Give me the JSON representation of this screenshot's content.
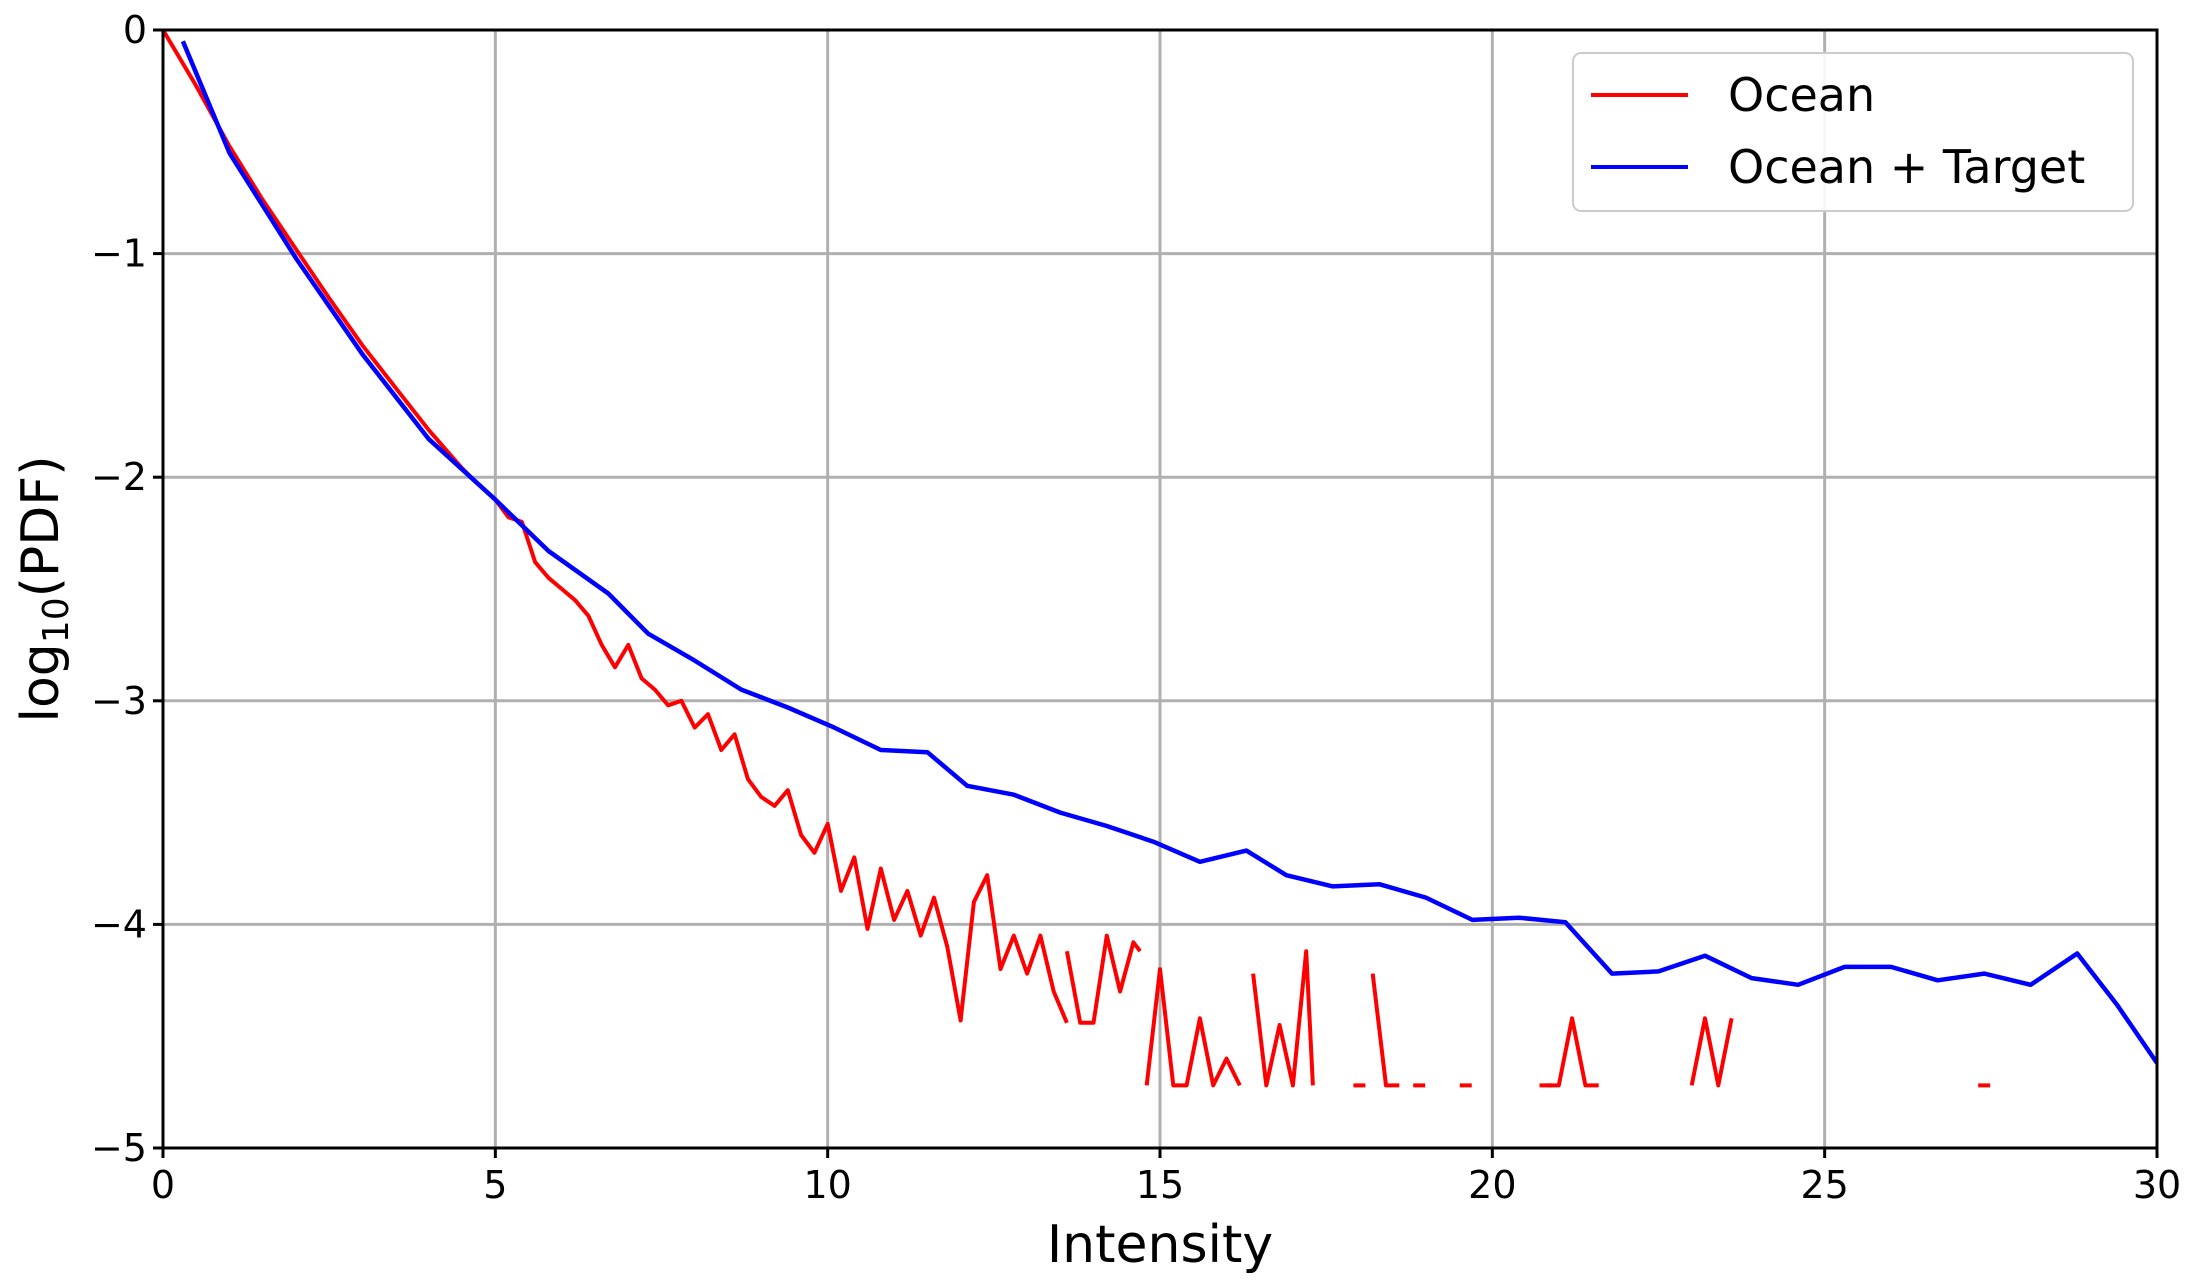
{
  "chart_data": {
    "type": "line",
    "title": "",
    "xlabel": "Intensity",
    "ylabel_parts": {
      "pre": "log",
      "sub": "10",
      "post": "(PDF)"
    },
    "xlim": [
      0,
      30
    ],
    "ylim": [
      -5,
      0
    ],
    "xticks": [
      0,
      5,
      10,
      15,
      20,
      25,
      30
    ],
    "yticks": [
      0,
      -1,
      -2,
      -3,
      -4,
      -5
    ],
    "xtick_labels": [
      "0",
      "5",
      "10",
      "15",
      "20",
      "25",
      "30"
    ],
    "ytick_labels": [
      "0",
      "−1",
      "−2",
      "−3",
      "−4",
      "−5"
    ],
    "grid": true,
    "legend_position": "top-right",
    "series": [
      {
        "name": "Ocean",
        "color": "#ff0000",
        "segments": [
          [
            [
              0,
              0
            ],
            [
              0.5,
              -0.25
            ],
            [
              1,
              -0.52
            ],
            [
              1.5,
              -0.76
            ],
            [
              2,
              -0.98
            ],
            [
              2.5,
              -1.2
            ],
            [
              3,
              -1.41
            ],
            [
              3.5,
              -1.6
            ],
            [
              4,
              -1.79
            ],
            [
              4.5,
              -1.96
            ],
            [
              4.7,
              -2.02
            ],
            [
              5,
              -2.1
            ],
            [
              5.2,
              -2.18
            ],
            [
              5.4,
              -2.2
            ],
            [
              5.6,
              -2.38
            ],
            [
              5.8,
              -2.45
            ],
            [
              6,
              -2.5
            ],
            [
              6.2,
              -2.55
            ],
            [
              6.4,
              -2.62
            ],
            [
              6.6,
              -2.75
            ],
            [
              6.8,
              -2.85
            ],
            [
              7,
              -2.75
            ],
            [
              7.2,
              -2.9
            ],
            [
              7.4,
              -2.95
            ],
            [
              7.6,
              -3.02
            ],
            [
              7.8,
              -3.0
            ],
            [
              8,
              -3.12
            ],
            [
              8.2,
              -3.06
            ],
            [
              8.4,
              -3.22
            ],
            [
              8.6,
              -3.15
            ],
            [
              8.8,
              -3.35
            ],
            [
              9,
              -3.43
            ],
            [
              9.2,
              -3.47
            ],
            [
              9.4,
              -3.4
            ],
            [
              9.6,
              -3.6
            ],
            [
              9.8,
              -3.68
            ],
            [
              10,
              -3.55
            ],
            [
              10.2,
              -3.85
            ],
            [
              10.4,
              -3.7
            ],
            [
              10.6,
              -4.02
            ],
            [
              10.8,
              -3.75
            ],
            [
              11,
              -3.98
            ],
            [
              11.2,
              -3.85
            ],
            [
              11.4,
              -4.05
            ],
            [
              11.6,
              -3.88
            ],
            [
              11.8,
              -4.1
            ],
            [
              12,
              -4.43
            ],
            [
              12.2,
              -3.9
            ],
            [
              12.4,
              -3.78
            ],
            [
              12.6,
              -4.2
            ],
            [
              12.8,
              -4.05
            ],
            [
              13,
              -4.22
            ],
            [
              13.2,
              -4.05
            ],
            [
              13.4,
              -4.3
            ],
            [
              13.6,
              -4.44
            ]
          ],
          [
            [
              13.6,
              -4.12
            ],
            [
              13.8,
              -4.44
            ],
            [
              14,
              -4.44
            ],
            [
              14.2,
              -4.05
            ],
            [
              14.4,
              -4.3
            ],
            [
              14.6,
              -4.08
            ],
            [
              14.7,
              -4.12
            ]
          ],
          [
            [
              14.8,
              -4.72
            ],
            [
              15,
              -4.2
            ],
            [
              15.2,
              -4.72
            ],
            [
              15.4,
              -4.72
            ],
            [
              15.6,
              -4.42
            ],
            [
              15.8,
              -4.72
            ],
            [
              16,
              -4.6
            ],
            [
              16.2,
              -4.72
            ]
          ],
          [
            [
              16.4,
              -4.22
            ],
            [
              16.6,
              -4.72
            ],
            [
              16.8,
              -4.45
            ],
            [
              17,
              -4.72
            ],
            [
              17.2,
              -4.12
            ],
            [
              17.3,
              -4.72
            ]
          ],
          [
            [
              18.2,
              -4.22
            ],
            [
              18.4,
              -4.72
            ],
            [
              18.6,
              -4.72
            ]
          ],
          [
            [
              20.8,
              -4.72
            ],
            [
              21,
              -4.72
            ],
            [
              21.2,
              -4.42
            ],
            [
              21.4,
              -4.72
            ],
            [
              21.6,
              -4.72
            ]
          ],
          [
            [
              23,
              -4.72
            ],
            [
              23.2,
              -4.42
            ],
            [
              23.4,
              -4.72
            ],
            [
              23.6,
              -4.42
            ]
          ]
        ],
        "dashes": [
          [
            18,
            -4.72
          ],
          [
            18.9,
            -4.72
          ],
          [
            19.6,
            -4.72
          ],
          [
            20.8,
            -4.72
          ],
          [
            27.4,
            -4.72
          ]
        ]
      },
      {
        "name": "Ocean + Target",
        "color": "#0000ff",
        "points": [
          [
            0.3,
            -0.05
          ],
          [
            1,
            -0.55
          ],
          [
            2,
            -1.02
          ],
          [
            3,
            -1.45
          ],
          [
            4,
            -1.83
          ],
          [
            5,
            -2.1
          ],
          [
            5.8,
            -2.33
          ],
          [
            6.7,
            -2.52
          ],
          [
            7.3,
            -2.7
          ],
          [
            8,
            -2.82
          ],
          [
            8.7,
            -2.95
          ],
          [
            9.4,
            -3.03
          ],
          [
            10.1,
            -3.12
          ],
          [
            10.8,
            -3.22
          ],
          [
            11.5,
            -3.23
          ],
          [
            12.1,
            -3.38
          ],
          [
            12.8,
            -3.42
          ],
          [
            13.5,
            -3.5
          ],
          [
            14.2,
            -3.56
          ],
          [
            14.9,
            -3.63
          ],
          [
            15.6,
            -3.72
          ],
          [
            16.3,
            -3.67
          ],
          [
            16.9,
            -3.78
          ],
          [
            17.6,
            -3.83
          ],
          [
            18.3,
            -3.82
          ],
          [
            19,
            -3.88
          ],
          [
            19.7,
            -3.98
          ],
          [
            20.4,
            -3.97
          ],
          [
            21.1,
            -3.99
          ],
          [
            21.8,
            -4.22
          ],
          [
            22.5,
            -4.21
          ],
          [
            23.2,
            -4.14
          ],
          [
            23.9,
            -4.24
          ],
          [
            24.6,
            -4.27
          ],
          [
            25.3,
            -4.19
          ],
          [
            26,
            -4.19
          ],
          [
            26.7,
            -4.25
          ],
          [
            27.4,
            -4.22
          ],
          [
            28.1,
            -4.27
          ],
          [
            28.8,
            -4.13
          ],
          [
            29.4,
            -4.36
          ],
          [
            30,
            -4.62
          ]
        ]
      }
    ]
  }
}
